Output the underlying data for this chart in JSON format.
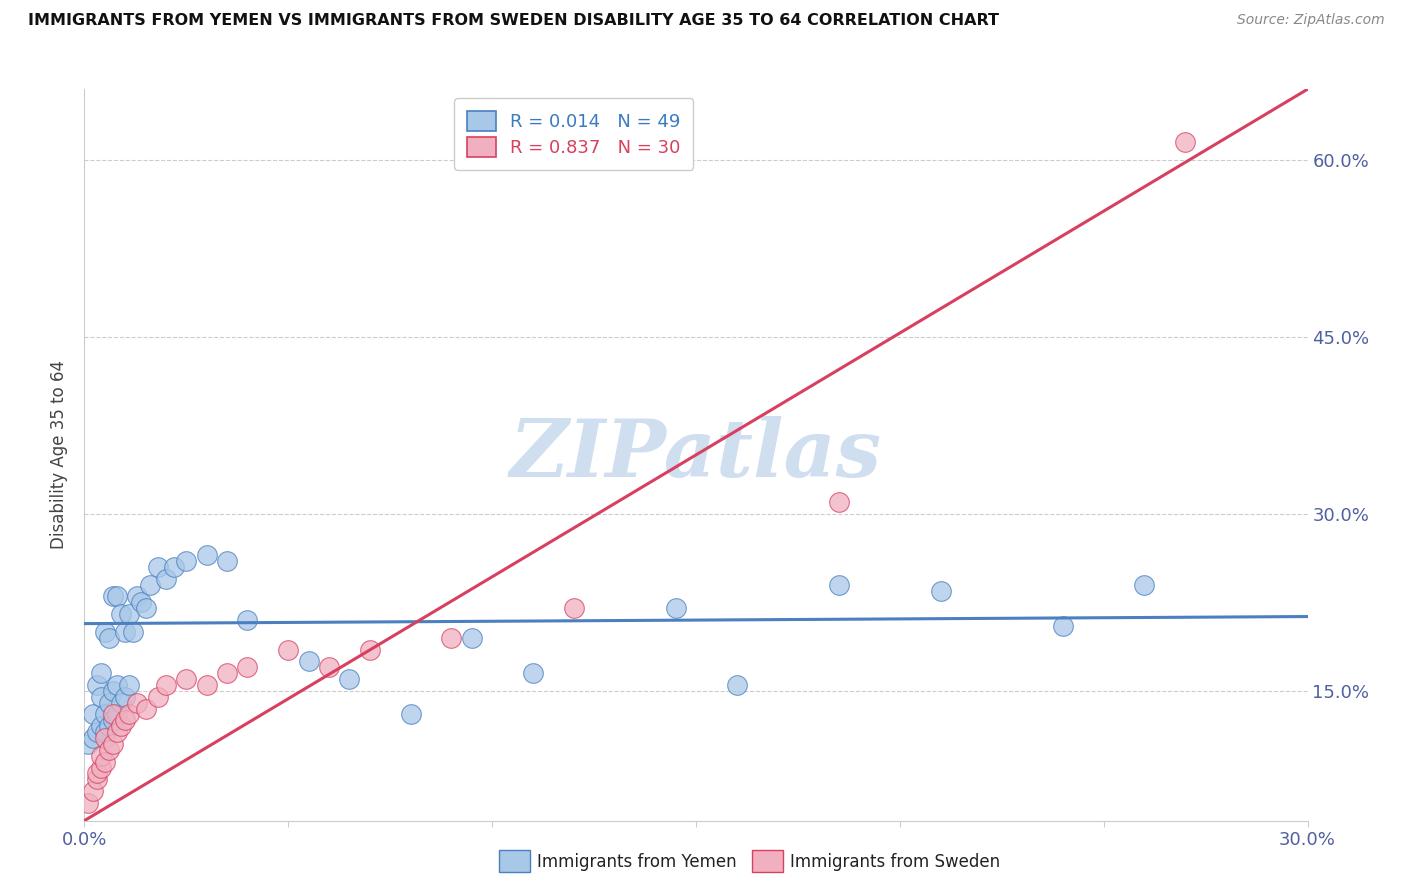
{
  "title": "IMMIGRANTS FROM YEMEN VS IMMIGRANTS FROM SWEDEN DISABILITY AGE 35 TO 64 CORRELATION CHART",
  "source": "Source: ZipAtlas.com",
  "ylabel": "Disability Age 35 to 64",
  "xlim": [
    0.0,
    0.3
  ],
  "ylim": [
    0.04,
    0.66
  ],
  "xticks": [
    0.0,
    0.05,
    0.1,
    0.15,
    0.2,
    0.25,
    0.3
  ],
  "xtick_labels": [
    "0.0%",
    "",
    "",
    "",
    "",
    "",
    "30.0%"
  ],
  "yticks": [
    0.15,
    0.3,
    0.45,
    0.6
  ],
  "ytick_labels": [
    "15.0%",
    "30.0%",
    "45.0%",
    "60.0%"
  ],
  "legend_r1": "R = 0.014",
  "legend_n1": "N = 49",
  "legend_r2": "R = 0.837",
  "legend_n2": "N = 30",
  "legend_label1": "Immigrants from Yemen",
  "legend_label2": "Immigrants from Sweden",
  "blue_color": "#a8c8e8",
  "pink_color": "#f0b0c0",
  "blue_line_color": "#4a7fc0",
  "pink_line_color": "#d84060",
  "watermark": "ZIPatlas",
  "watermark_color": "#d0dff0",
  "yemen_x": [
    0.001,
    0.002,
    0.002,
    0.003,
    0.003,
    0.004,
    0.004,
    0.004,
    0.005,
    0.005,
    0.005,
    0.006,
    0.006,
    0.006,
    0.007,
    0.007,
    0.007,
    0.008,
    0.008,
    0.008,
    0.009,
    0.009,
    0.01,
    0.01,
    0.011,
    0.011,
    0.012,
    0.013,
    0.014,
    0.015,
    0.016,
    0.018,
    0.02,
    0.022,
    0.025,
    0.03,
    0.035,
    0.04,
    0.055,
    0.065,
    0.08,
    0.095,
    0.11,
    0.145,
    0.16,
    0.185,
    0.21,
    0.24,
    0.26
  ],
  "yemen_y": [
    0.105,
    0.11,
    0.13,
    0.115,
    0.155,
    0.12,
    0.145,
    0.165,
    0.115,
    0.13,
    0.2,
    0.12,
    0.14,
    0.195,
    0.125,
    0.15,
    0.23,
    0.13,
    0.155,
    0.23,
    0.14,
    0.215,
    0.145,
    0.2,
    0.155,
    0.215,
    0.2,
    0.23,
    0.225,
    0.22,
    0.24,
    0.255,
    0.245,
    0.255,
    0.26,
    0.265,
    0.26,
    0.21,
    0.175,
    0.16,
    0.13,
    0.195,
    0.165,
    0.22,
    0.155,
    0.24,
    0.235,
    0.205,
    0.24
  ],
  "sweden_x": [
    0.001,
    0.002,
    0.003,
    0.003,
    0.004,
    0.004,
    0.005,
    0.005,
    0.006,
    0.007,
    0.007,
    0.008,
    0.009,
    0.01,
    0.011,
    0.013,
    0.015,
    0.018,
    0.02,
    0.025,
    0.03,
    0.035,
    0.04,
    0.05,
    0.06,
    0.07,
    0.09,
    0.12,
    0.185,
    0.27
  ],
  "sweden_y": [
    0.055,
    0.065,
    0.075,
    0.08,
    0.085,
    0.095,
    0.09,
    0.11,
    0.1,
    0.105,
    0.13,
    0.115,
    0.12,
    0.125,
    0.13,
    0.14,
    0.135,
    0.145,
    0.155,
    0.16,
    0.155,
    0.165,
    0.17,
    0.185,
    0.17,
    0.185,
    0.195,
    0.22,
    0.31,
    0.615
  ],
  "blue_regression": [
    0.0,
    0.3,
    0.207,
    0.213
  ],
  "pink_regression": [
    0.0,
    0.3,
    0.04,
    0.66
  ]
}
